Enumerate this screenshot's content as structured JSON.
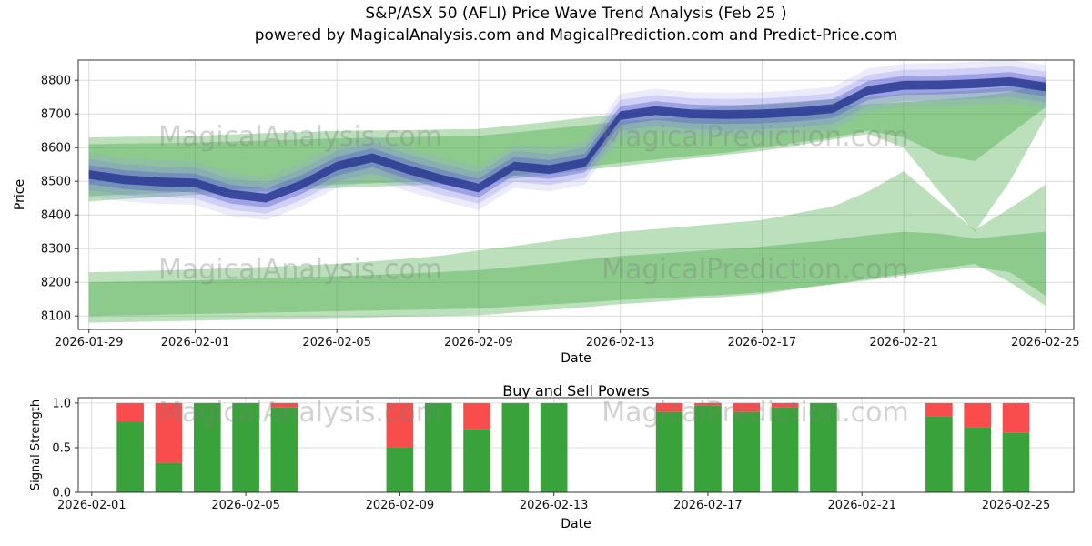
{
  "title": {
    "line1": "S&P/ASX 50 (AFLI) Price Wave Trend Analysis (Feb 25 )",
    "line2": "powered by MagicalAnalysis.com and MagicalPrediction.com and Predict-Price.com"
  },
  "watermark": {
    "analysis": "MagicalAnalysis.com",
    "prediction": "MagicalPrediction.com"
  },
  "chart_data": [
    {
      "type": "area",
      "name": "price_wave_trend",
      "xlabel": "Date",
      "ylabel": "Price",
      "ylim": [
        8060,
        8860
      ],
      "yticks": [
        8100,
        8200,
        8300,
        8400,
        8500,
        8600,
        8700,
        8800
      ],
      "xlim_days": [
        -0.3,
        27.8
      ],
      "xticks": [
        {
          "day": 0,
          "label": "2026-01-29"
        },
        {
          "day": 3,
          "label": "2026-02-01"
        },
        {
          "day": 7,
          "label": "2026-02-05"
        },
        {
          "day": 11,
          "label": "2026-02-09"
        },
        {
          "day": 15,
          "label": "2026-02-13"
        },
        {
          "day": 19,
          "label": "2026-02-17"
        },
        {
          "day": 23,
          "label": "2026-02-21"
        },
        {
          "day": 27,
          "label": "2026-02-25"
        }
      ],
      "dates": [
        "2026-01-29",
        "2026-01-30",
        "2026-01-31",
        "2026-02-01",
        "2026-02-02",
        "2026-02-03",
        "2026-02-04",
        "2026-02-05",
        "2026-02-06",
        "2026-02-07",
        "2026-02-08",
        "2026-02-09",
        "2026-02-10",
        "2026-02-11",
        "2026-02-12",
        "2026-02-13",
        "2026-02-14",
        "2026-02-15",
        "2026-02-16",
        "2026-02-17",
        "2026-02-18",
        "2026-02-19",
        "2026-02-20",
        "2026-02-21",
        "2026-02-22",
        "2026-02-23",
        "2026-02-24",
        "2026-02-25"
      ],
      "blue_wave": {
        "center": [
          8520,
          8505,
          8498,
          8495,
          8462,
          8450,
          8490,
          8545,
          8570,
          8535,
          8505,
          8480,
          8545,
          8535,
          8555,
          8695,
          8710,
          8700,
          8698,
          8700,
          8706,
          8716,
          8770,
          8785,
          8786,
          8790,
          8796,
          8780
        ],
        "layers": [
          {
            "hw": 65,
            "color": "#9b9bef",
            "alpha": 0.2
          },
          {
            "hw": 46,
            "color": "#7d7de6",
            "alpha": 0.25
          },
          {
            "hw": 28,
            "color": "#5560c8",
            "alpha": 0.4
          },
          {
            "hw": 13,
            "color": "#2f3e96",
            "alpha": 0.9
          }
        ]
      },
      "bands": [
        {
          "name": "upper-forecast-outer",
          "color": "#2ca02c",
          "alpha": 0.32,
          "lower": [
            8440,
            8447,
            8453,
            8460,
            8465,
            8470,
            8475,
            8480,
            8484,
            8488,
            8492,
            8495,
            8508,
            8520,
            8533,
            8545,
            8556,
            8567,
            8579,
            8590,
            8607,
            8624,
            8640,
            8600,
            8470,
            8350,
            8500,
            8690
          ],
          "upper": [
            8630,
            8632,
            8633,
            8635,
            8639,
            8643,
            8646,
            8650,
            8651,
            8652,
            8654,
            8655,
            8666,
            8677,
            8689,
            8700,
            8708,
            8715,
            8723,
            8730,
            8737,
            8744,
            8750,
            8760,
            8765,
            8770,
            8780,
            8800
          ]
        },
        {
          "name": "upper-forecast-inner",
          "color": "#2ca02c",
          "alpha": 0.32,
          "lower": [
            8455,
            8460,
            8465,
            8470,
            8475,
            8480,
            8485,
            8490,
            8494,
            8497,
            8500,
            8505,
            8518,
            8530,
            8542,
            8555,
            8565,
            8575,
            8585,
            8600,
            8615,
            8630,
            8650,
            8630,
            8580,
            8560,
            8640,
            8720
          ],
          "upper": [
            8610,
            8612,
            8613,
            8615,
            8618,
            8621,
            8624,
            8627,
            8629,
            8631,
            8633,
            8635,
            8645,
            8655,
            8666,
            8678,
            8685,
            8692,
            8699,
            8706,
            8713,
            8720,
            8728,
            8735,
            8742,
            8750,
            8765,
            8790
          ]
        },
        {
          "name": "lower-forecast-outer",
          "color": "#2ca02c",
          "alpha": 0.32,
          "lower": [
            8080,
            8082,
            8084,
            8086,
            8088,
            8090,
            8092,
            8094,
            8096,
            8098,
            8100,
            8102,
            8110,
            8118,
            8126,
            8135,
            8142,
            8150,
            8157,
            8165,
            8180,
            8195,
            8210,
            8225,
            8240,
            8255,
            8200,
            8130
          ],
          "upper": [
            8230,
            8232,
            8235,
            8238,
            8242,
            8246,
            8250,
            8255,
            8262,
            8270,
            8280,
            8295,
            8308,
            8322,
            8336,
            8350,
            8358,
            8367,
            8376,
            8385,
            8405,
            8425,
            8470,
            8530,
            8440,
            8355,
            8420,
            8490
          ]
        },
        {
          "name": "lower-forecast-inner",
          "color": "#2ca02c",
          "alpha": 0.32,
          "lower": [
            8100,
            8102,
            8104,
            8106,
            8108,
            8110,
            8112,
            8114,
            8116,
            8118,
            8120,
            8122,
            8128,
            8134,
            8140,
            8147,
            8152,
            8158,
            8163,
            8170,
            8182,
            8194,
            8206,
            8220,
            8232,
            8245,
            8230,
            8160
          ],
          "upper": [
            8200,
            8202,
            8204,
            8206,
            8209,
            8212,
            8215,
            8218,
            8222,
            8226,
            8231,
            8236,
            8246,
            8256,
            8267,
            8278,
            8285,
            8292,
            8299,
            8306,
            8316,
            8326,
            8340,
            8350,
            8345,
            8330,
            8340,
            8350
          ]
        }
      ]
    },
    {
      "type": "bar",
      "name": "buy_sell_powers",
      "title": "Buy and Sell Powers",
      "xlabel": "Date",
      "ylabel": "Signal Strength",
      "ylim": [
        0,
        1.06
      ],
      "yticks": [
        {
          "v": 0,
          "label": "0.0"
        },
        {
          "v": 0.5,
          "label": "0.5"
        },
        {
          "v": 1.0,
          "label": "1.0"
        }
      ],
      "xlim_days": [
        -0.35,
        25.5
      ],
      "xticks": [
        {
          "day": 0,
          "label": "2026-02-01"
        },
        {
          "day": 4,
          "label": "2026-02-05"
        },
        {
          "day": 8,
          "label": "2026-02-09"
        },
        {
          "day": 12,
          "label": "2026-02-13"
        },
        {
          "day": 16,
          "label": "2026-02-17"
        },
        {
          "day": 20,
          "label": "2026-02-21"
        },
        {
          "day": 24,
          "label": "2026-02-25"
        }
      ],
      "colors": {
        "buy": "#3aa23a",
        "sell": "#f94c4c"
      },
      "bar_width_days": 0.7,
      "bars": [
        {
          "date": "2026-02-02",
          "day": 1,
          "buy": 0.79,
          "sell": 0.21
        },
        {
          "date": "2026-02-03",
          "day": 2,
          "buy": 0.33,
          "sell": 0.67
        },
        {
          "date": "2026-02-04",
          "day": 3,
          "buy": 1.0,
          "sell": 0.0
        },
        {
          "date": "2026-02-05",
          "day": 4,
          "buy": 1.0,
          "sell": 0.0
        },
        {
          "date": "2026-02-06",
          "day": 5,
          "buy": 0.95,
          "sell": 0.05
        },
        {
          "date": "2026-02-09",
          "day": 8,
          "buy": 0.5,
          "sell": 0.5
        },
        {
          "date": "2026-02-10",
          "day": 9,
          "buy": 1.0,
          "sell": 0.0
        },
        {
          "date": "2026-02-11",
          "day": 10,
          "buy": 0.71,
          "sell": 0.29
        },
        {
          "date": "2026-02-12",
          "day": 11,
          "buy": 1.0,
          "sell": 0.0
        },
        {
          "date": "2026-02-13",
          "day": 12,
          "buy": 1.0,
          "sell": 0.0
        },
        {
          "date": "2026-02-16",
          "day": 15,
          "buy": 0.9,
          "sell": 0.1
        },
        {
          "date": "2026-02-17",
          "day": 16,
          "buy": 0.97,
          "sell": 0.03
        },
        {
          "date": "2026-02-18",
          "day": 17,
          "buy": 0.9,
          "sell": 0.1
        },
        {
          "date": "2026-02-19",
          "day": 18,
          "buy": 0.95,
          "sell": 0.05
        },
        {
          "date": "2026-02-20",
          "day": 19,
          "buy": 1.0,
          "sell": 0.0
        },
        {
          "date": "2026-02-23",
          "day": 22,
          "buy": 0.85,
          "sell": 0.15
        },
        {
          "date": "2026-02-24",
          "day": 23,
          "buy": 0.73,
          "sell": 0.27
        },
        {
          "date": "2026-02-25",
          "day": 24,
          "buy": 0.67,
          "sell": 0.33
        }
      ]
    }
  ],
  "style": {
    "grid_color": "#dcdcdc",
    "spine_color": "#333333",
    "tick_label_color": "#111111",
    "watermark_color": "#7f7f7f"
  }
}
